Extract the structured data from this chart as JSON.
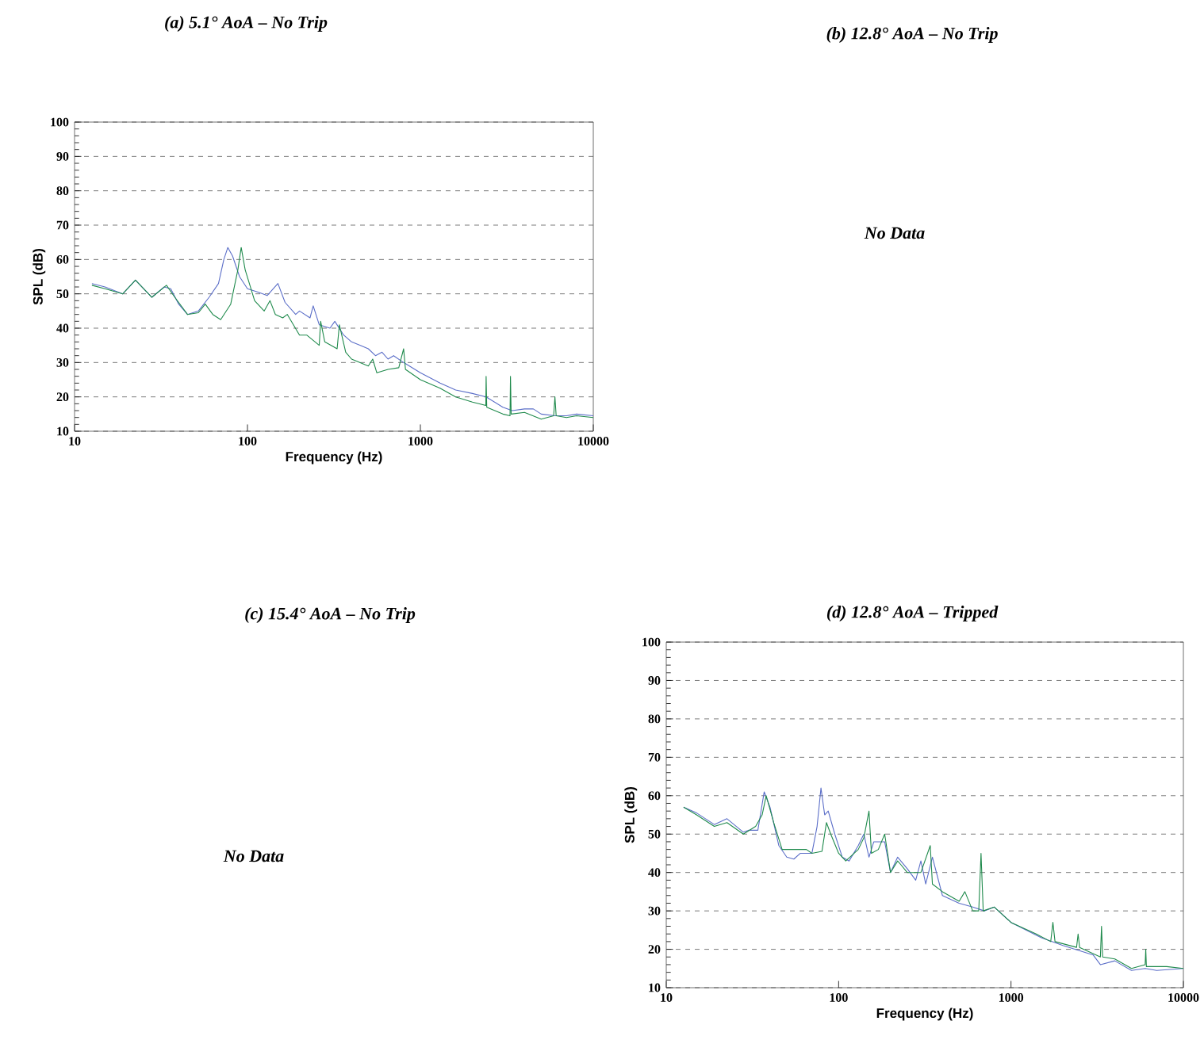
{
  "chart_data": [
    {
      "type": "line",
      "title": "(a) 5.1° AoA – No Trip",
      "xlabel": "Frequency (Hz)",
      "ylabel": "SPL (dB)",
      "log": "x",
      "grid": "y",
      "xlim": [
        10,
        10000
      ],
      "ylim": [
        10,
        100
      ],
      "xticks": [
        10,
        100,
        1000,
        10000
      ],
      "yticks": [
        10,
        20,
        30,
        40,
        50,
        60,
        70,
        80,
        90,
        100
      ],
      "series": [
        {
          "color": "#5b6ec8",
          "x": [
            12.6,
            15,
            19,
            22.5,
            28,
            33,
            36,
            40,
            45,
            52,
            60,
            68,
            73,
            77,
            82,
            90,
            100,
            115,
            130,
            150,
            165,
            190,
            200,
            230,
            240,
            260,
            300,
            320,
            360,
            400,
            450,
            500,
            550,
            600,
            650,
            700,
            800,
            1000,
            1300,
            1600,
            2000,
            2400,
            3000,
            3400,
            4000,
            4500,
            5000,
            6000,
            7000,
            8000,
            10000
          ],
          "values": [
            53,
            52,
            50,
            54,
            49,
            52,
            51.5,
            47,
            44,
            45,
            49,
            53,
            60,
            63.5,
            61,
            55,
            51.5,
            50.5,
            49.5,
            53,
            47.5,
            44,
            45,
            43,
            46.5,
            41,
            40,
            42,
            38,
            36,
            35,
            34,
            32,
            33,
            31,
            32,
            30,
            27,
            24,
            22,
            21,
            20,
            17,
            16,
            16.5,
            16.5,
            15,
            14.5,
            14.5,
            15,
            14.5
          ]
        },
        {
          "color": "#1f8a4c",
          "x": [
            12.6,
            15,
            19,
            22.5,
            28,
            34,
            38,
            45,
            52,
            57,
            63,
            70,
            80,
            88,
            92,
            97,
            110,
            125,
            135,
            145,
            160,
            170,
            200,
            220,
            260,
            265,
            280,
            330,
            340,
            370,
            400,
            500,
            530,
            560,
            650,
            750,
            800,
            820,
            1000,
            1300,
            1600,
            2000,
            2390,
            2400,
            2420,
            3000,
            3300,
            3320,
            3350,
            4000,
            5000,
            5900,
            6000,
            6100,
            7000,
            8000,
            10000
          ],
          "values": [
            52.5,
            51.5,
            50,
            54,
            49,
            52.5,
            49,
            44,
            44.5,
            47,
            44,
            42.5,
            47,
            57,
            63.5,
            57,
            48,
            45,
            48,
            44,
            43,
            44,
            38,
            38,
            35,
            42,
            36,
            34,
            41,
            33,
            31,
            29,
            31,
            27,
            28,
            28.5,
            34,
            28,
            25,
            22.5,
            20,
            18.5,
            17.5,
            26,
            17,
            15,
            14.5,
            26,
            15,
            15.5,
            13.5,
            14.5,
            20,
            14.5,
            14,
            14.5,
            14
          ]
        }
      ]
    },
    {
      "type": "other",
      "title": "(b) 12.8° AoA – No Trip",
      "annotations": [
        "No Data"
      ]
    },
    {
      "type": "other",
      "title": "(c) 15.4° AoA – No Trip",
      "annotations": [
        "No Data"
      ]
    },
    {
      "type": "line",
      "title": "(d) 12.8° AoA – Tripped",
      "xlabel": "Frequency (Hz)",
      "ylabel": "SPL (dB)",
      "log": "x",
      "grid": "y",
      "xlim": [
        10,
        10000
      ],
      "ylim": [
        10,
        100
      ],
      "xticks": [
        10,
        100,
        1000,
        10000
      ],
      "yticks": [
        10,
        20,
        30,
        40,
        50,
        60,
        70,
        80,
        90,
        100
      ],
      "series": [
        {
          "color": "#5b6ec8",
          "x": [
            12.6,
            15,
            19,
            22.5,
            28,
            30,
            34,
            37,
            40,
            45,
            50,
            55,
            60,
            70,
            75,
            79,
            83,
            87,
            95,
            105,
            115,
            130,
            140,
            150,
            160,
            185,
            200,
            220,
            250,
            280,
            300,
            320,
            350,
            400,
            500,
            600,
            700,
            800,
            1000,
            1500,
            2000,
            3000,
            3300,
            4000,
            5000,
            6000,
            7000,
            10000
          ],
          "values": [
            57,
            55.5,
            52.5,
            54,
            50.5,
            51,
            51,
            61,
            57,
            47,
            44,
            43.5,
            45,
            45,
            52,
            62,
            55,
            56,
            50,
            44,
            43,
            47,
            50,
            44,
            48,
            48,
            40,
            44,
            41,
            38,
            43,
            37,
            44,
            34,
            32,
            31,
            30,
            31,
            27,
            23,
            21,
            18.5,
            16,
            17,
            14.5,
            15,
            14.5,
            15
          ]
        },
        {
          "color": "#1f8a4c",
          "x": [
            12.6,
            15,
            19,
            22.5,
            28,
            33,
            36,
            38,
            42,
            47,
            55,
            65,
            70,
            80,
            85,
            90,
            100,
            110,
            130,
            140,
            150,
            155,
            170,
            185,
            200,
            220,
            230,
            250,
            300,
            340,
            350,
            400,
            500,
            540,
            600,
            650,
            670,
            690,
            800,
            1000,
            1400,
            1700,
            1750,
            1800,
            2400,
            2450,
            2500,
            3300,
            3350,
            3400,
            4000,
            5000,
            6000,
            6050,
            6100,
            8000,
            10000
          ],
          "values": [
            57,
            55,
            52,
            53,
            50,
            52,
            55,
            60,
            53,
            46,
            46,
            46,
            45,
            45.5,
            53,
            50,
            45,
            43,
            46,
            49,
            56,
            45,
            46,
            50,
            40,
            43,
            42,
            40,
            40,
            47,
            37,
            35,
            32.5,
            35,
            30,
            30,
            45,
            30,
            31,
            27,
            24,
            22,
            27,
            22,
            20.5,
            24,
            20.5,
            18,
            26,
            18,
            17.5,
            15,
            16,
            20,
            15.5,
            15.5,
            15
          ]
        }
      ]
    }
  ]
}
